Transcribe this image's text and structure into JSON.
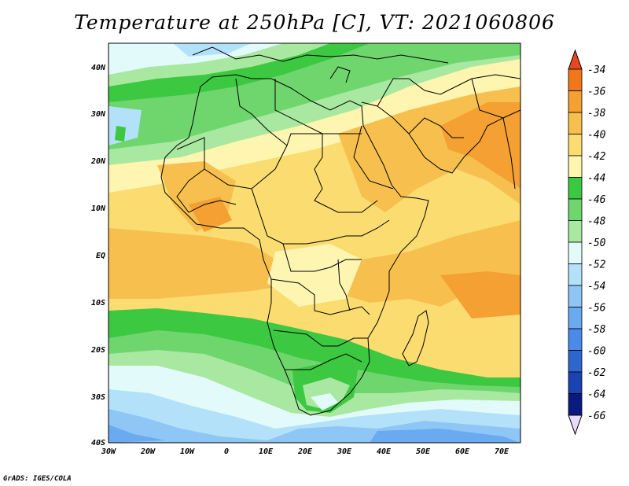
{
  "title": "Temperature at 250hPa [C], VT: 2021060806",
  "credit": "GrADS: IGES/COLA",
  "lat_labels": [
    "40N",
    "30N",
    "20N",
    "10N",
    "EQ",
    "10S",
    "20S",
    "30S",
    "40S"
  ],
  "lon_labels": [
    "30W",
    "20W",
    "10W",
    "0",
    "10E",
    "20E",
    "30E",
    "40E",
    "50E",
    "60E",
    "70E"
  ],
  "colorbar": {
    "labels": [
      "-34",
      "-36",
      "-38",
      "-40",
      "-42",
      "-44",
      "-46",
      "-48",
      "-50",
      "-52",
      "-54",
      "-56",
      "-58",
      "-60",
      "-62",
      "-64",
      "-66"
    ],
    "colors": [
      "#e8481e",
      "#f0781a",
      "#f4a032",
      "#f7c04e",
      "#fadc70",
      "#fdf5b0",
      "#3cc841",
      "#6fd66d",
      "#a8e8a0",
      "#e2fbfa",
      "#b4e1fa",
      "#8ec6f5",
      "#6aaaf0",
      "#4a8ae8",
      "#2e66d0",
      "#1a42b0",
      "#0a1a80",
      "#e8dcf8"
    ]
  }
}
